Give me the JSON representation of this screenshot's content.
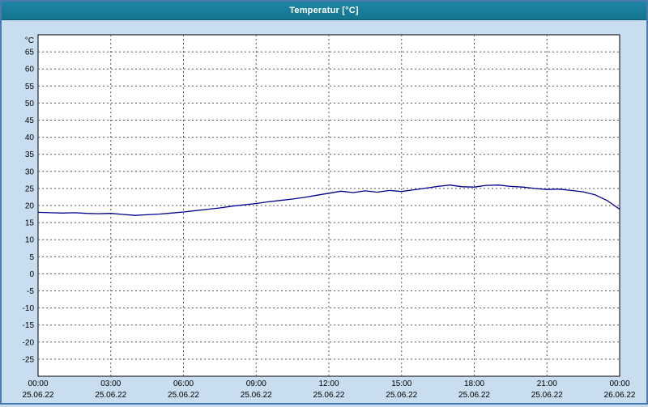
{
  "window": {
    "title": "Temperatur [°C]"
  },
  "chart_data": {
    "type": "line",
    "title": "Temperatur [°C]",
    "ylabel": "°C",
    "xlabel": "",
    "grid": true,
    "legend": "none",
    "ylim": [
      -30,
      70
    ],
    "xlim": [
      0,
      24
    ],
    "yticks": [
      65,
      60,
      55,
      50,
      45,
      40,
      35,
      30,
      25,
      20,
      15,
      10,
      5,
      0,
      -5,
      -10,
      -15,
      -20,
      -25
    ],
    "xticks": [
      {
        "x": 0,
        "time": "00:00",
        "date": "25.06.22"
      },
      {
        "x": 3,
        "time": "03:00",
        "date": "25.06.22"
      },
      {
        "x": 6,
        "time": "06:00",
        "date": "25.06.22"
      },
      {
        "x": 9,
        "time": "09:00",
        "date": "25.06.22"
      },
      {
        "x": 12,
        "time": "12:00",
        "date": "25.06.22"
      },
      {
        "x": 15,
        "time": "15:00",
        "date": "25.06.22"
      },
      {
        "x": 18,
        "time": "18:00",
        "date": "25.06.22"
      },
      {
        "x": 21,
        "time": "21:00",
        "date": "25.06.22"
      },
      {
        "x": 24,
        "time": "00:00",
        "date": "26.06.22"
      }
    ],
    "series": [
      {
        "name": "Temperatur",
        "color": "#00008c",
        "x": [
          0,
          0.5,
          1,
          1.5,
          2,
          2.5,
          3,
          3.5,
          4,
          4.5,
          5,
          5.5,
          6,
          6.5,
          7,
          7.5,
          8,
          8.5,
          9,
          9.5,
          10,
          10.5,
          11,
          11.5,
          12,
          12.5,
          13,
          13.5,
          14,
          14.5,
          15,
          15.5,
          16,
          16.5,
          17,
          17.5,
          18,
          18.5,
          19,
          19.5,
          20,
          20.5,
          21,
          21.5,
          22,
          22.5,
          23,
          23.5,
          24
        ],
        "values": [
          18.0,
          17.9,
          17.8,
          17.9,
          17.7,
          17.6,
          17.7,
          17.4,
          17.1,
          17.3,
          17.5,
          17.8,
          18.1,
          18.5,
          18.9,
          19.3,
          19.8,
          20.2,
          20.6,
          21.1,
          21.5,
          21.9,
          22.4,
          23.0,
          23.6,
          24.2,
          23.8,
          24.3,
          23.9,
          24.4,
          24.1,
          24.6,
          25.1,
          25.6,
          26.0,
          25.5,
          25.4,
          25.9,
          26.0,
          25.6,
          25.4,
          25.0,
          24.7,
          24.8,
          24.4,
          24.0,
          23.1,
          21.4,
          18.9
        ]
      }
    ],
    "colors": {
      "plot_background": "#ffffff",
      "window_background": "#c8ddf0",
      "titlebar": "#17809c",
      "gridline": "#555555",
      "axis_border": "#000000",
      "line": "#00008c"
    }
  }
}
